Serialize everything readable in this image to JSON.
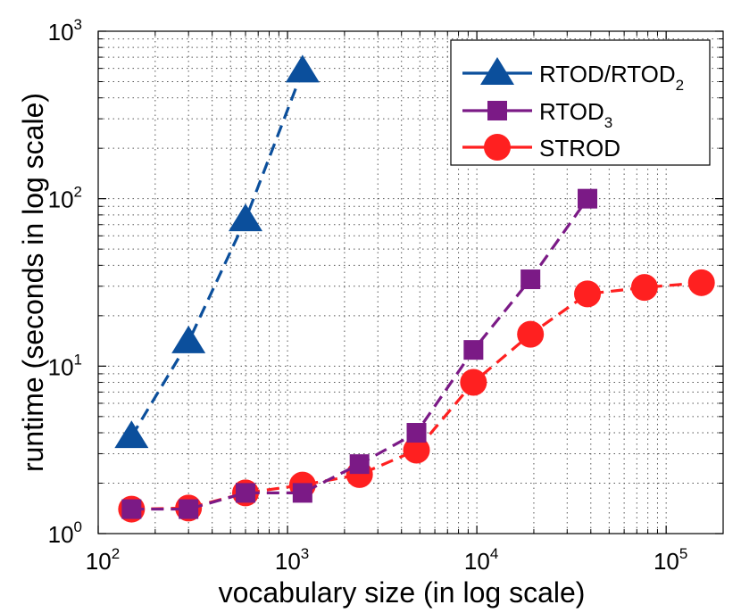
{
  "chart_data": {
    "type": "line",
    "xlabel": "vocabulary size (in log scale)",
    "ylabel": "runtime (seconds in log scale)",
    "xscale": "log",
    "yscale": "log",
    "xlim": [
      100,
      200000
    ],
    "ylim": [
      1,
      1000
    ],
    "grid": true,
    "legend_position": "top-right",
    "x_ticks": [
      {
        "value": 100,
        "base": "10",
        "exp": "2"
      },
      {
        "value": 1000,
        "base": "10",
        "exp": "3"
      },
      {
        "value": 10000,
        "base": "10",
        "exp": "4"
      },
      {
        "value": 100000,
        "base": "10",
        "exp": "5"
      }
    ],
    "y_ticks": [
      {
        "value": 1,
        "base": "10",
        "exp": "0"
      },
      {
        "value": 10,
        "base": "10",
        "exp": "1"
      },
      {
        "value": 100,
        "base": "10",
        "exp": "2"
      },
      {
        "value": 1000,
        "base": "10",
        "exp": "3"
      }
    ],
    "series": [
      {
        "name": "RTOD/RTOD",
        "name_sub": "2",
        "color": "#0b4f9c",
        "marker": "triangle",
        "x": [
          150,
          300,
          600,
          1200
        ],
        "y": [
          3.8,
          14,
          75,
          580
        ]
      },
      {
        "name": "RTOD",
        "name_sub": "3",
        "color": "#7b1a86",
        "marker": "square",
        "x": [
          150,
          300,
          600,
          1200,
          2400,
          4800,
          9600,
          19200,
          38400
        ],
        "y": [
          1.4,
          1.4,
          1.75,
          1.75,
          2.6,
          4.0,
          12.5,
          33,
          100
        ]
      },
      {
        "name": "STROD",
        "name_sub": "",
        "color": "#ff2020",
        "marker": "circle",
        "x": [
          150,
          300,
          600,
          1200,
          2400,
          4800,
          9600,
          19200,
          38400,
          76800,
          153600
        ],
        "y": [
          1.4,
          1.42,
          1.75,
          1.95,
          2.25,
          3.15,
          8.0,
          15.5,
          27,
          29.5,
          31.5
        ]
      }
    ]
  }
}
